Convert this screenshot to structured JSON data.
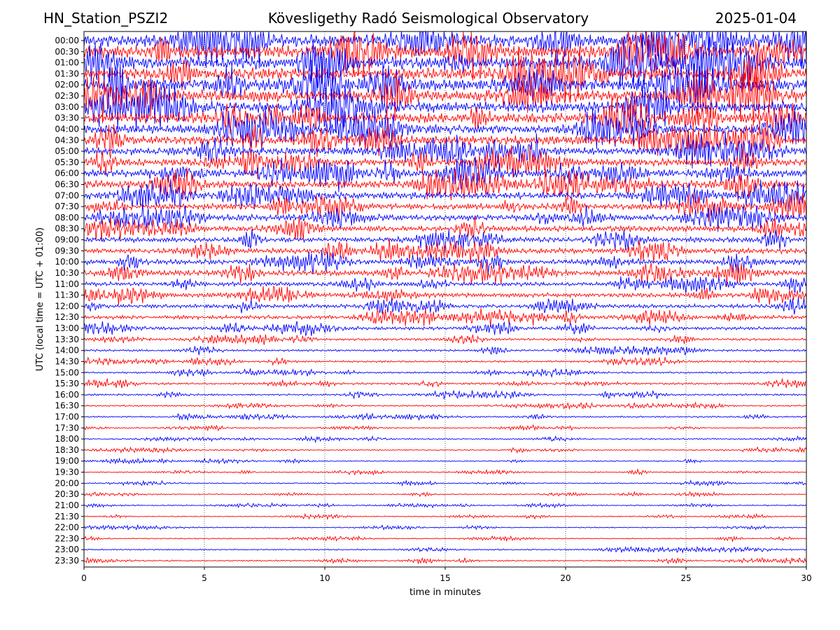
{
  "header": {
    "station": "HN_Station_PSZI2",
    "observatory": "Kövesligethy Radó Seismological Observatory",
    "date": "2025-01-04"
  },
  "chart_data": {
    "type": "line",
    "title": "Kövesligethy Radó Seismological Observatory",
    "xlabel": "time in minutes",
    "ylabel": "UTC (local time = UTC + 01:00)",
    "xlim": [
      0,
      30
    ],
    "x_ticks": [
      0,
      5,
      10,
      15,
      20,
      25,
      30
    ],
    "grid_x": true,
    "colors": [
      "#0000ff",
      "#ff0000"
    ],
    "row_labels": [
      "00:00",
      "00:30",
      "01:00",
      "01:30",
      "02:00",
      "02:30",
      "03:00",
      "03:30",
      "04:00",
      "04:30",
      "05:00",
      "05:30",
      "06:00",
      "06:30",
      "07:00",
      "07:30",
      "08:00",
      "08:30",
      "09:00",
      "09:30",
      "10:00",
      "10:30",
      "11:00",
      "11:30",
      "12:00",
      "12:30",
      "13:00",
      "13:30",
      "14:00",
      "14:30",
      "15:00",
      "15:30",
      "16:00",
      "16:30",
      "17:00",
      "17:30",
      "18:00",
      "18:30",
      "19:00",
      "19:30",
      "20:00",
      "20:30",
      "21:00",
      "21:30",
      "22:00",
      "22:30",
      "23:00",
      "23:30"
    ],
    "row_amplitude": [
      1.0,
      1.0,
      1.0,
      0.95,
      0.95,
      0.95,
      0.9,
      0.85,
      0.75,
      0.7,
      0.62,
      0.6,
      0.58,
      0.6,
      0.55,
      0.5,
      0.5,
      0.45,
      0.4,
      0.42,
      0.4,
      0.42,
      0.32,
      0.35,
      0.3,
      0.3,
      0.25,
      0.18,
      0.16,
      0.15,
      0.14,
      0.16,
      0.14,
      0.12,
      0.12,
      0.1,
      0.1,
      0.09,
      0.09,
      0.09,
      0.09,
      0.09,
      0.08,
      0.08,
      0.08,
      0.09,
      0.1,
      0.11
    ]
  }
}
